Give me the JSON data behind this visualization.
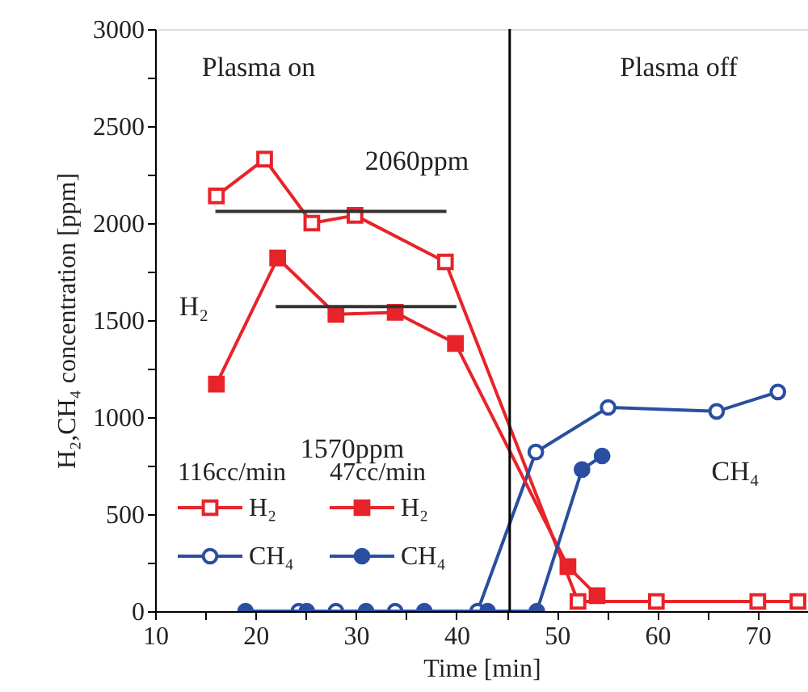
{
  "chart_data": {
    "type": "line",
    "xlabel": "Time [min]",
    "ylabel": "H₂,CH₄ concentration [ppm]",
    "xlim": [
      10,
      75
    ],
    "ylim": [
      0,
      3000
    ],
    "xticks": [
      10,
      {
        "value": 15,
        "label": null
      },
      20,
      {
        "value": 25,
        "label": null
      },
      30,
      {
        "value": 35,
        "label": null
      },
      40,
      {
        "value": 45,
        "label": null
      },
      50,
      {
        "value": 55,
        "label": null
      },
      60,
      {
        "value": 65,
        "label": null
      },
      70
    ],
    "yticks": [
      0,
      {
        "value": 250,
        "label": null
      },
      500,
      {
        "value": 750,
        "label": null
      },
      1000,
      {
        "value": 1250,
        "label": null
      },
      1500,
      {
        "value": 1750,
        "label": null
      },
      2000,
      {
        "value": 2250,
        "label": null
      },
      2500,
      {
        "value": 2750,
        "label": null
      },
      3000
    ],
    "grid": false,
    "legend": "bottom left",
    "line_style": "solid",
    "series": [
      {
        "name": "H₂",
        "color": "#e8232a",
        "marker": "square",
        "x": [
          16.1,
          20.9,
          25.6,
          29.9,
          38.9,
          52.1,
          59.9,
          70.0,
          74.0
        ],
        "values": [
          2140,
          2330,
          2000,
          2040,
          1800,
          50,
          50,
          50,
          50
        ]
      },
      {
        "name": "CH₄",
        "color": "#2a4ea0",
        "marker": "circle",
        "x": [
          24.3,
          28.0,
          33.9,
          42.1,
          47.9,
          55.1,
          65.9,
          72.0
        ],
        "values": [
          0,
          0,
          0,
          0,
          820,
          1050,
          1030,
          1130
        ]
      },
      {
        "name": "H₂",
        "color": "#e8232a",
        "marker": "square",
        "x": [
          16.1,
          22.2,
          28.0,
          33.9,
          39.9,
          51.1,
          54.0
        ],
        "values": [
          1170,
          1820,
          1530,
          1540,
          1380,
          230,
          80
        ]
      },
      {
        "name": "CH₄",
        "color": "#2a4ea0",
        "marker": "circle",
        "x": [
          19.0,
          25.1,
          31.0,
          36.8,
          43.1,
          48.0,
          52.5,
          54.5
        ],
        "values": [
          0,
          0,
          0,
          0,
          0,
          0,
          730,
          800
        ]
      },
      {
        "type": "line",
        "color": "#333333",
        "marker": "none",
        "x": [
          16,
          39
        ],
        "values": [
          2060,
          2060
        ]
      },
      {
        "type": "line",
        "color": "#333333",
        "marker": "none",
        "x": [
          22,
          40
        ],
        "values": [
          1570,
          1570
        ]
      }
    ],
    "ref_lines": [
      {
        "axis": "x",
        "value": 45.3,
        "color": "#000000"
      }
    ],
    "annotations": [
      "116cc/min",
      "47cc/min",
      "Plasma on",
      "Plasma off",
      "2060ppm",
      "1570ppm",
      "H₂",
      "CH₄"
    ]
  }
}
